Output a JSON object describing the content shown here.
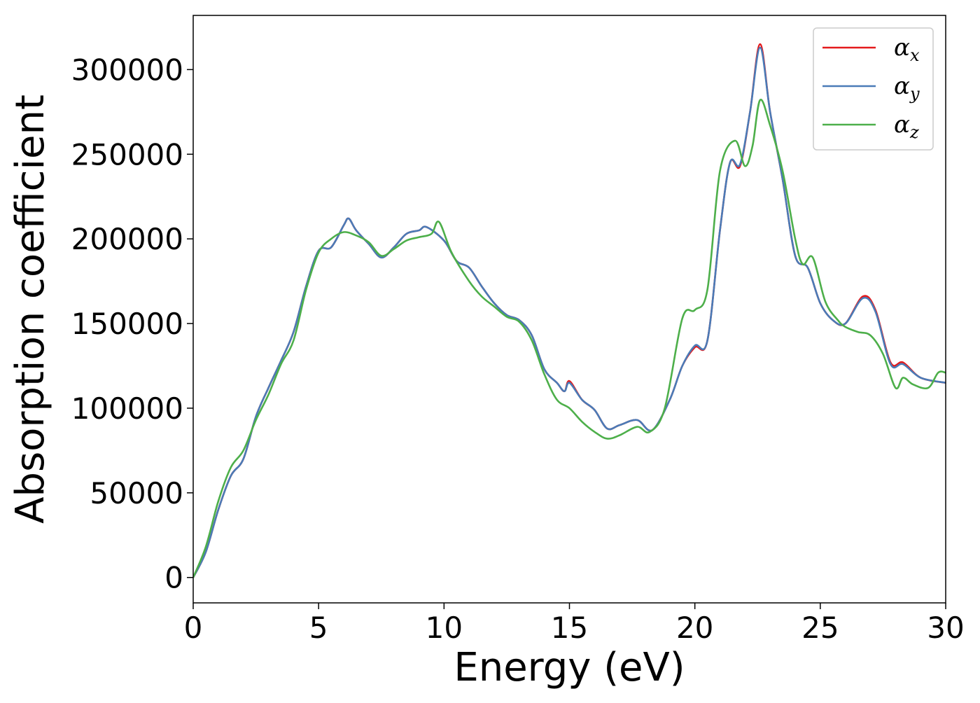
{
  "chart_data": {
    "type": "line",
    "title": "",
    "xlabel": "Energy (eV)",
    "ylabel": "Absorption coefficient",
    "xlim": [
      0,
      30
    ],
    "ylim": [
      -15000,
      332000
    ],
    "x_ticks": [
      0,
      5,
      10,
      15,
      20,
      25,
      30
    ],
    "x_tick_labels": [
      "0",
      "5",
      "10",
      "15",
      "20",
      "25",
      "30"
    ],
    "y_ticks": [
      0,
      50000,
      100000,
      150000,
      200000,
      250000,
      300000
    ],
    "y_tick_labels": [
      "0",
      "50000",
      "100000",
      "150000",
      "200000",
      "250000",
      "300000"
    ],
    "grid": false,
    "legend_position": "top-right",
    "series": [
      {
        "name": "αx",
        "legend_symbol": "α",
        "legend_subscript": "x",
        "color": "#e41a1c",
        "points": [
          [
            0,
            0
          ],
          [
            0.5,
            15000
          ],
          [
            1,
            40000
          ],
          [
            1.5,
            60000
          ],
          [
            2,
            70000
          ],
          [
            2.5,
            95000
          ],
          [
            3,
            112000
          ],
          [
            3.5,
            128000
          ],
          [
            4,
            145000
          ],
          [
            4.5,
            172000
          ],
          [
            5,
            193000
          ],
          [
            5.5,
            195000
          ],
          [
            6,
            208000
          ],
          [
            6.2,
            212000
          ],
          [
            6.5,
            205000
          ],
          [
            7,
            197000
          ],
          [
            7.5,
            189000
          ],
          [
            8,
            195000
          ],
          [
            8.5,
            203000
          ],
          [
            9,
            205000
          ],
          [
            9.3,
            207000
          ],
          [
            10,
            199000
          ],
          [
            10.5,
            187000
          ],
          [
            11,
            183000
          ],
          [
            11.5,
            172000
          ],
          [
            12,
            162000
          ],
          [
            12.5,
            155000
          ],
          [
            13,
            152000
          ],
          [
            13.5,
            143000
          ],
          [
            14,
            123000
          ],
          [
            14.5,
            115000
          ],
          [
            14.8,
            110000
          ],
          [
            15,
            116000
          ],
          [
            15.5,
            105000
          ],
          [
            16,
            99000
          ],
          [
            16.5,
            88000
          ],
          [
            17,
            90000
          ],
          [
            17.7,
            93000
          ],
          [
            18.3,
            87000
          ],
          [
            19,
            105000
          ],
          [
            19.5,
            125000
          ],
          [
            20,
            136000
          ],
          [
            20.5,
            140000
          ],
          [
            21,
            205000
          ],
          [
            21.4,
            245000
          ],
          [
            21.8,
            243000
          ],
          [
            22.2,
            275000
          ],
          [
            22.6,
            315000
          ],
          [
            23,
            275000
          ],
          [
            23.5,
            235000
          ],
          [
            24,
            190000
          ],
          [
            24.5,
            183000
          ],
          [
            25,
            162000
          ],
          [
            25.5,
            152000
          ],
          [
            26,
            150000
          ],
          [
            26.7,
            166000
          ],
          [
            27.2,
            158000
          ],
          [
            27.8,
            127000
          ],
          [
            28.3,
            127000
          ],
          [
            29,
            118000
          ],
          [
            30,
            115000
          ]
        ]
      },
      {
        "name": "αy",
        "legend_symbol": "α",
        "legend_subscript": "y",
        "color": "#4a7bb7",
        "points": [
          [
            0,
            0
          ],
          [
            0.5,
            15000
          ],
          [
            1,
            40000
          ],
          [
            1.5,
            60000
          ],
          [
            2,
            70000
          ],
          [
            2.5,
            95000
          ],
          [
            3,
            112000
          ],
          [
            3.5,
            128000
          ],
          [
            4,
            145000
          ],
          [
            4.5,
            172000
          ],
          [
            5,
            193000
          ],
          [
            5.5,
            195000
          ],
          [
            6,
            208000
          ],
          [
            6.2,
            212000
          ],
          [
            6.5,
            205000
          ],
          [
            7,
            197000
          ],
          [
            7.5,
            189000
          ],
          [
            8,
            195000
          ],
          [
            8.5,
            203000
          ],
          [
            9,
            205000
          ],
          [
            9.3,
            207000
          ],
          [
            10,
            199000
          ],
          [
            10.5,
            187000
          ],
          [
            11,
            183000
          ],
          [
            11.5,
            172000
          ],
          [
            12,
            162000
          ],
          [
            12.5,
            155000
          ],
          [
            13,
            152000
          ],
          [
            13.5,
            143000
          ],
          [
            14,
            123000
          ],
          [
            14.5,
            115000
          ],
          [
            14.8,
            110000
          ],
          [
            15,
            115000
          ],
          [
            15.5,
            105000
          ],
          [
            16,
            99000
          ],
          [
            16.5,
            88000
          ],
          [
            17,
            90000
          ],
          [
            17.7,
            93000
          ],
          [
            18.3,
            87000
          ],
          [
            19,
            105000
          ],
          [
            19.5,
            125000
          ],
          [
            20,
            137000
          ],
          [
            20.5,
            140000
          ],
          [
            21,
            205000
          ],
          [
            21.4,
            245000
          ],
          [
            21.8,
            244000
          ],
          [
            22.2,
            275000
          ],
          [
            22.6,
            313000
          ],
          [
            23,
            275000
          ],
          [
            23.5,
            235000
          ],
          [
            24,
            190000
          ],
          [
            24.5,
            183000
          ],
          [
            25,
            162000
          ],
          [
            25.5,
            152000
          ],
          [
            26,
            150000
          ],
          [
            26.7,
            165000
          ],
          [
            27.2,
            157000
          ],
          [
            27.8,
            126000
          ],
          [
            28.3,
            126000
          ],
          [
            29,
            118000
          ],
          [
            30,
            115000
          ]
        ]
      },
      {
        "name": "αz",
        "legend_symbol": "α",
        "legend_subscript": "z",
        "color": "#4daf4a",
        "points": [
          [
            0,
            0
          ],
          [
            0.5,
            18000
          ],
          [
            1,
            45000
          ],
          [
            1.5,
            65000
          ],
          [
            2,
            75000
          ],
          [
            2.5,
            93000
          ],
          [
            3,
            108000
          ],
          [
            3.5,
            126000
          ],
          [
            4,
            140000
          ],
          [
            4.5,
            170000
          ],
          [
            5,
            192000
          ],
          [
            5.5,
            200000
          ],
          [
            6,
            204000
          ],
          [
            6.5,
            202000
          ],
          [
            7,
            198000
          ],
          [
            7.5,
            190000
          ],
          [
            8,
            194000
          ],
          [
            8.5,
            199000
          ],
          [
            9,
            201000
          ],
          [
            9.5,
            203000
          ],
          [
            9.8,
            210000
          ],
          [
            10.3,
            192000
          ],
          [
            11,
            175000
          ],
          [
            11.5,
            166000
          ],
          [
            12,
            160000
          ],
          [
            12.5,
            154000
          ],
          [
            13,
            151000
          ],
          [
            13.5,
            140000
          ],
          [
            14,
            120000
          ],
          [
            14.5,
            105000
          ],
          [
            15,
            100000
          ],
          [
            15.5,
            92000
          ],
          [
            16,
            86000
          ],
          [
            16.5,
            82000
          ],
          [
            17,
            84000
          ],
          [
            17.7,
            89000
          ],
          [
            18.2,
            86000
          ],
          [
            18.8,
            100000
          ],
          [
            19.5,
            153000
          ],
          [
            20,
            158000
          ],
          [
            20.5,
            170000
          ],
          [
            21,
            240000
          ],
          [
            21.6,
            258000
          ],
          [
            22,
            243000
          ],
          [
            22.3,
            255000
          ],
          [
            22.6,
            282000
          ],
          [
            23,
            267000
          ],
          [
            23.5,
            240000
          ],
          [
            24,
            200000
          ],
          [
            24.3,
            185000
          ],
          [
            24.7,
            189000
          ],
          [
            25.2,
            163000
          ],
          [
            25.7,
            152000
          ],
          [
            26,
            148000
          ],
          [
            26.5,
            145000
          ],
          [
            27,
            143000
          ],
          [
            27.5,
            132000
          ],
          [
            28,
            112000
          ],
          [
            28.3,
            118000
          ],
          [
            28.7,
            114000
          ],
          [
            29.3,
            112000
          ],
          [
            29.7,
            121000
          ],
          [
            30,
            121000
          ]
        ]
      }
    ]
  }
}
